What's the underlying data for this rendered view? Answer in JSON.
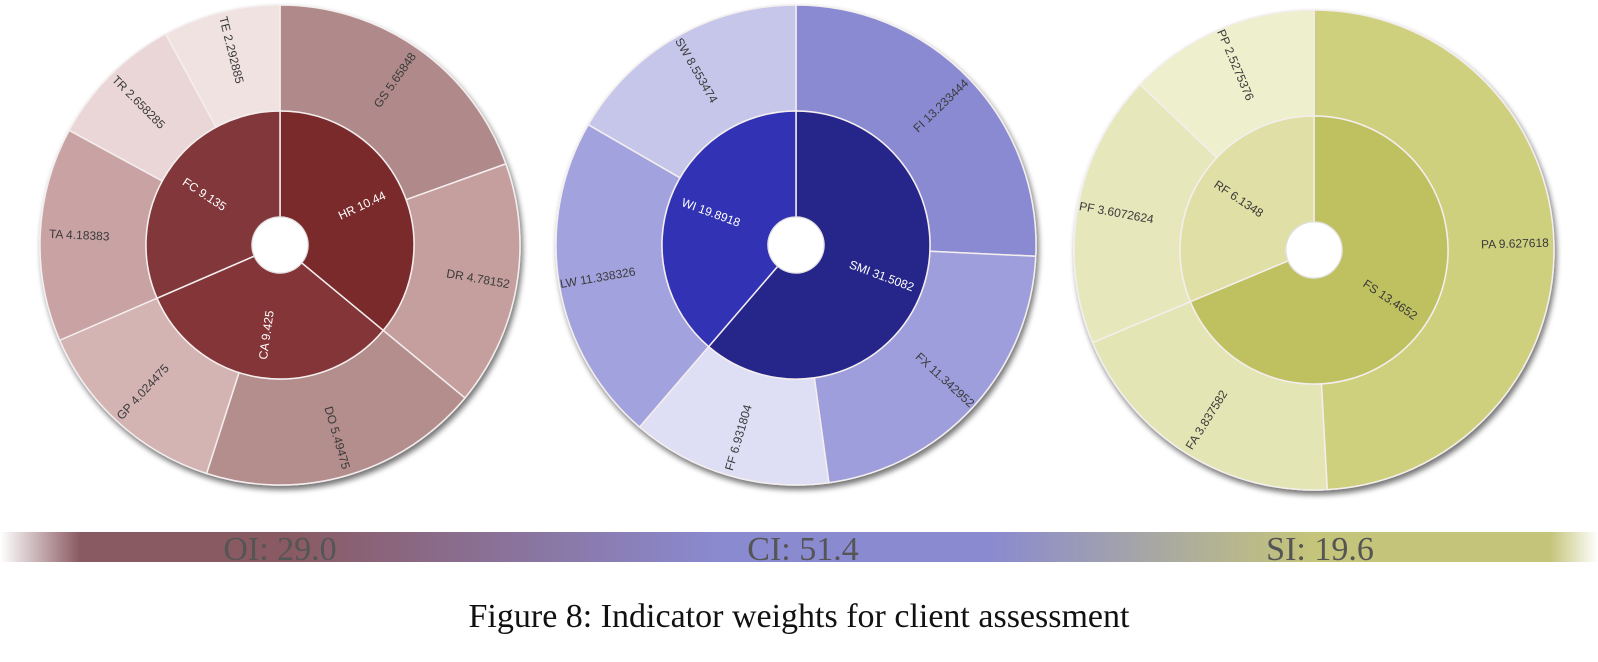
{
  "caption": "Figure 8: Indicator weights for client assessment",
  "chart_data": [
    {
      "type": "sunburst",
      "colors": {
        "inner": [
          "#7a2a2c",
          "#843638",
          "#82393a"
        ],
        "outer_base": "#b88d8d"
      },
      "inner": [
        {
          "label": "HR 10.44",
          "value": 10.44,
          "color": "#7a2a2c",
          "children": [
            {
              "label": "GS 5.65848",
              "value": 5.65848,
              "color": "#b08a8a"
            },
            {
              "label": "DR 4.78152",
              "value": 4.78152,
              "color": "#c59e9e"
            }
          ]
        },
        {
          "label": "CA 9.425",
          "value": 9.425,
          "color": "#843638",
          "children": [
            {
              "label": "DO 5.49475",
              "value": 5.49475,
              "color": "#b48d8d"
            },
            {
              "label": "GP 4.024475",
              "value": 4.024475,
              "color": "#d4b3b3"
            }
          ]
        },
        {
          "label": "FC 9.135",
          "value": 9.135,
          "color": "#82393a",
          "children": [
            {
              "label": "TA 4.18383",
              "value": 4.18383,
              "color": "#c9a3a3"
            },
            {
              "label": "TR 2.658285",
              "value": 2.658285,
              "color": "#ead6d6"
            },
            {
              "label": "TE 2.292885",
              "value": 2.292885,
              "color": "#f1e2e2"
            }
          ]
        }
      ]
    },
    {
      "type": "sunburst",
      "colors": {
        "inner": [
          "#27278a",
          "#3333b4"
        ],
        "outer_base": "#9e9edc"
      },
      "inner": [
        {
          "label": "SMI 31.5082",
          "value": 31.5082,
          "color": "#27278a",
          "children": [
            {
              "label": "FI 13.233444",
              "value": 13.233444,
              "color": "#8a8ad2"
            },
            {
              "label": "FX 11.342952",
              "value": 11.342952,
              "color": "#9e9edc"
            },
            {
              "label": "FF 6.931804",
              "value": 6.931804,
              "color": "#dedef4"
            }
          ]
        },
        {
          "label": "WI 19.8918",
          "value": 19.8918,
          "color": "#3333b4",
          "children": [
            {
              "label": "LW 11.338326",
              "value": 11.338326,
              "color": "#a2a2de"
            },
            {
              "label": "SW 8.553474",
              "value": 8.553474,
              "color": "#c6c6ea"
            }
          ]
        }
      ]
    },
    {
      "type": "sunburst",
      "colors": {
        "inner": [
          "#bfc060",
          "#dfdfa6"
        ],
        "outer_base": "#cfd07e"
      },
      "inner": [
        {
          "label": "FS 13.4652",
          "value": 13.4652,
          "color": "#bfc060",
          "children": [
            {
              "label": "PA 9.627618",
              "value": 9.627618,
              "color": "#cfd07e"
            },
            {
              "label": "FA 3.837582",
              "value": 3.837582,
              "color": "#e4e5b4"
            }
          ]
        },
        {
          "label": "RF 6.1348",
          "value": 6.1348,
          "color": "#dfdfa6",
          "children": [
            {
              "label": "PF 3.6072624",
              "value": 3.6072624,
              "color": "#e6e7bb"
            },
            {
              "label": "PP 2.5275376",
              "value": 2.5275376,
              "color": "#eeefcc"
            }
          ]
        }
      ]
    }
  ],
  "summary_bar": {
    "labels": [
      "OI: 29.0",
      "CI: 51.4",
      "SI: 19.6"
    ],
    "values": [
      29.0,
      51.4,
      19.6
    ],
    "colors": [
      "#8a5a62",
      "#8a8ad0",
      "#c4c47a"
    ]
  }
}
